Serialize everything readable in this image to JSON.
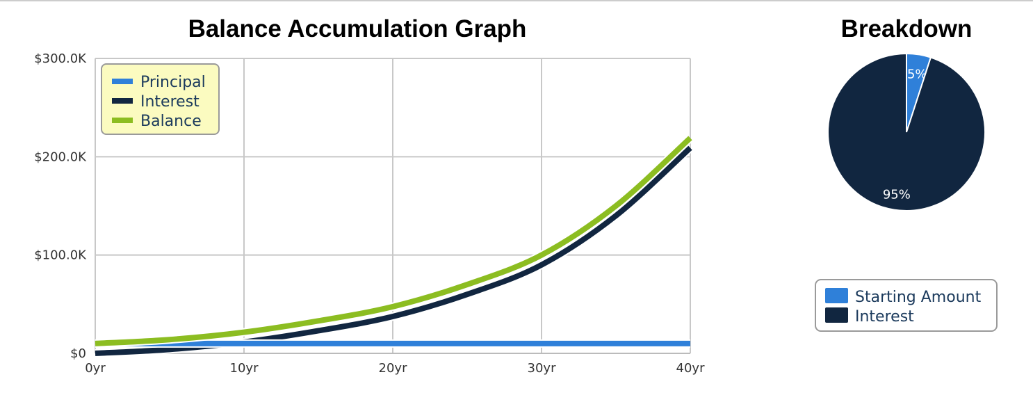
{
  "chart_data": [
    {
      "type": "line",
      "title": "Balance Accumulation Graph",
      "xlabel": "",
      "ylabel": "",
      "x": [
        0,
        5,
        10,
        15,
        20,
        25,
        30,
        35,
        40
      ],
      "x_tick_labels": [
        "0yr",
        "10yr",
        "20yr",
        "30yr",
        "40yr"
      ],
      "x_ticks": [
        0,
        10,
        20,
        30,
        40
      ],
      "y_tick_labels": [
        "$0",
        "$100.0K",
        "$200.0K",
        "$300.0K"
      ],
      "y_ticks": [
        0,
        100000,
        200000,
        300000
      ],
      "xlim": [
        0,
        40
      ],
      "ylim": [
        0,
        300000
      ],
      "grid": true,
      "legend_position": "top-left",
      "series": [
        {
          "name": "Principal",
          "color": "#2f80d9",
          "values": [
            10000,
            10000,
            10000,
            10000,
            10000,
            10000,
            10000,
            10000,
            10000
          ]
        },
        {
          "name": "Interest",
          "color": "#112640",
          "values": [
            0,
            4000,
            11500,
            23000,
            37500,
            60000,
            90000,
            140000,
            209000
          ]
        },
        {
          "name": "Balance",
          "color": "#8cbd21",
          "values": [
            10000,
            14000,
            21500,
            33000,
            47500,
            70000,
            100000,
            150000,
            219000
          ]
        }
      ]
    },
    {
      "type": "pie",
      "title": "Breakdown",
      "legend_position": "bottom",
      "slices": [
        {
          "name": "Starting Amount",
          "value": 5,
          "label": "5%",
          "color": "#2f80d9"
        },
        {
          "name": "Interest",
          "value": 95,
          "label": "95%",
          "color": "#112640"
        }
      ]
    }
  ]
}
